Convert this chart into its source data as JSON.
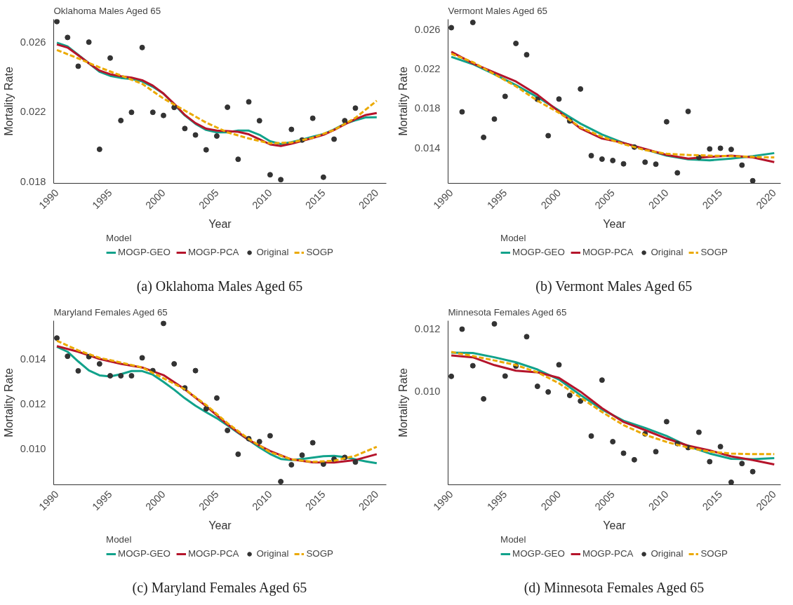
{
  "chart_data": [
    {
      "type": "line",
      "title": "Oklahoma Males Aged 65",
      "xlabel": "Year",
      "ylabel": "Mortality Rate",
      "legend_title": "Model",
      "legend": "bottom",
      "xlim": [
        1989.7,
        2020.9
      ],
      "ylim": [
        0.0179,
        0.0273
      ],
      "xticks": [
        1990,
        1995,
        2000,
        2005,
        2010,
        2015,
        2020
      ],
      "yticks": [
        0.018,
        0.022,
        0.026
      ],
      "annotations": [
        "(a) Oklahoma Males Aged 65"
      ],
      "series": [
        {
          "name": "MOGP-GEO",
          "color": "#11a28b",
          "x": [
            1990,
            1991,
            1992,
            1993,
            1994,
            1995,
            1996,
            1997,
            1998,
            1999,
            2000,
            2001,
            2002,
            2003,
            2004,
            2005,
            2006,
            2007,
            2008,
            2009,
            2010,
            2011,
            2012,
            2013,
            2014,
            2015,
            2016,
            2017,
            2018,
            2019,
            2020
          ],
          "values": [
            0.02596,
            0.02575,
            0.02526,
            0.02478,
            0.02429,
            0.02406,
            0.02394,
            0.02388,
            0.02374,
            0.02343,
            0.02304,
            0.02242,
            0.02179,
            0.02131,
            0.02096,
            0.02082,
            0.02082,
            0.02092,
            0.02092,
            0.02068,
            0.02031,
            0.02015,
            0.02026,
            0.0204,
            0.02057,
            0.02072,
            0.02099,
            0.02131,
            0.02151,
            0.02168,
            0.02169
          ]
        },
        {
          "name": "MOGP-PCA",
          "color": "#b5142b",
          "x": [
            1990,
            1991,
            1992,
            1993,
            1994,
            1995,
            1996,
            1997,
            1998,
            1999,
            2000,
            2001,
            2002,
            2003,
            2004,
            2005,
            2006,
            2007,
            2008,
            2009,
            2010,
            2011,
            2012,
            2013,
            2014,
            2015,
            2016,
            2017,
            2018,
            2019,
            2020
          ],
          "values": [
            0.02586,
            0.02568,
            0.02524,
            0.02478,
            0.02436,
            0.02415,
            0.02404,
            0.02396,
            0.02381,
            0.0235,
            0.02304,
            0.02246,
            0.02182,
            0.02135,
            0.02103,
            0.02092,
            0.02089,
            0.02085,
            0.02071,
            0.02043,
            0.02013,
            0.02004,
            0.02017,
            0.02033,
            0.0205,
            0.02068,
            0.02096,
            0.02128,
            0.02158,
            0.02182,
            0.02193
          ]
        },
        {
          "name": "Original",
          "color": "#333333",
          "type": "scatter",
          "marker": "circle",
          "x": [
            1990,
            1991,
            1992,
            1993,
            1994,
            1995,
            1996,
            1997,
            1998,
            1999,
            2000,
            2001,
            2002,
            2003,
            2004,
            2005,
            2006,
            2007,
            2008,
            2009,
            2010,
            2011,
            2012,
            2013,
            2014,
            2015,
            2016,
            2017,
            2018
          ],
          "values": [
            0.02717,
            0.02626,
            0.02461,
            0.02599,
            0.01985,
            0.02508,
            0.0215,
            0.02197,
            0.02568,
            0.02197,
            0.02179,
            0.02225,
            0.02104,
            0.02067,
            0.01982,
            0.02061,
            0.02226,
            0.01928,
            0.02257,
            0.02149,
            0.01839,
            0.01811,
            0.02099,
            0.02038,
            0.02163,
            0.01825,
            0.02043,
            0.02149,
            0.02221
          ]
        },
        {
          "name": "SOGP",
          "color": "#eba900",
          "line_style": "dashed",
          "x": [
            1990,
            1992,
            1994,
            1996,
            1998,
            2000,
            2002,
            2004,
            2006,
            2008,
            2010,
            2012,
            2014,
            2016,
            2018,
            2020
          ],
          "values": [
            0.02554,
            0.02506,
            0.02454,
            0.02408,
            0.0236,
            0.02276,
            0.02207,
            0.02138,
            0.02082,
            0.02047,
            0.02019,
            0.02024,
            0.02051,
            0.02096,
            0.02165,
            0.02263
          ]
        }
      ]
    },
    {
      "type": "line",
      "title": "Vermont Males Aged 65",
      "xlabel": "Year",
      "ylabel": "Mortality Rate",
      "legend_title": "Model",
      "legend": "bottom",
      "xlim": [
        1989.7,
        2020.6
      ],
      "ylim": [
        0.0104,
        0.027
      ],
      "xticks": [
        1990,
        1995,
        2000,
        2005,
        2010,
        2015,
        2020
      ],
      "yticks": [
        0.014,
        0.018,
        0.022,
        0.026
      ],
      "annotations": [
        "(b) Vermont Males Aged 65"
      ],
      "series": [
        {
          "name": "MOGP-GEO",
          "color": "#11a28b",
          "x": [
            1990,
            1992,
            1994,
            1996,
            1998,
            2000,
            2002,
            2004,
            2006,
            2008,
            2010,
            2012,
            2014,
            2016,
            2018,
            2020
          ],
          "values": [
            0.0232,
            0.02246,
            0.02144,
            0.02034,
            0.01912,
            0.01778,
            0.01644,
            0.01534,
            0.01449,
            0.01383,
            0.0132,
            0.01283,
            0.01273,
            0.0129,
            0.01315,
            0.01346
          ]
        },
        {
          "name": "MOGP-PCA",
          "color": "#b5142b",
          "x": [
            1990,
            1992,
            1994,
            1996,
            1998,
            2000,
            2002,
            2004,
            2006,
            2008,
            2010,
            2012,
            2014,
            2016,
            2018,
            2020
          ],
          "values": [
            0.02371,
            0.02254,
            0.02161,
            0.02071,
            0.01937,
            0.01766,
            0.01595,
            0.01493,
            0.01449,
            0.01388,
            0.01327,
            0.0129,
            0.01307,
            0.0132,
            0.01302,
            0.01254
          ]
        },
        {
          "name": "Original",
          "color": "#333333",
          "type": "scatter",
          "marker": "circle",
          "x": [
            1990,
            1991,
            1992,
            1993,
            1994,
            1995,
            1996,
            1997,
            1998,
            1999,
            2000,
            2001,
            2002,
            2003,
            2004,
            2005,
            2006,
            2007,
            2008,
            2009,
            2010,
            2011,
            2012,
            2013,
            2014,
            2015,
            2016,
            2017,
            2018
          ],
          "values": [
            0.02615,
            0.01763,
            0.02668,
            0.01505,
            0.0169,
            0.0192,
            0.02456,
            0.02341,
            0.0189,
            0.01522,
            0.01893,
            0.01671,
            0.01995,
            0.0132,
            0.01285,
            0.01271,
            0.01237,
            0.01407,
            0.01254,
            0.01234,
            0.01663,
            0.01146,
            0.01768,
            0.01302,
            0.01388,
            0.01395,
            0.01383,
            0.01224,
            0.01066
          ]
        },
        {
          "name": "SOGP",
          "color": "#eba900",
          "line_style": "dashed",
          "x": [
            1990,
            1992,
            1994,
            1996,
            1998,
            2000,
            2002,
            2004,
            2006,
            2008,
            2010,
            2012,
            2014,
            2016,
            2018,
            2020
          ],
          "values": [
            0.02351,
            0.02266,
            0.02144,
            0.02022,
            0.01876,
            0.01754,
            0.01607,
            0.0151,
            0.01437,
            0.01376,
            0.01339,
            0.01327,
            0.0132,
            0.01315,
            0.01307,
            0.01302
          ]
        }
      ]
    },
    {
      "type": "line",
      "title": "Maryland Females Aged  65",
      "xlabel": "Year",
      "ylabel": "Mortality Rate",
      "legend_title": "Model",
      "legend": "bottom",
      "xlim": [
        1989.7,
        2020.9
      ],
      "ylim": [
        0.0084,
        0.0157
      ],
      "xticks": [
        1990,
        1995,
        2000,
        2005,
        2010,
        2015,
        2020
      ],
      "yticks": [
        {
          "value": 0.01,
          "label": "0.010"
        },
        0.012,
        0.014
      ],
      "annotations": [
        "(c) Maryland Females Aged 65"
      ],
      "series": [
        {
          "name": "MOGP-GEO",
          "color": "#11a28b",
          "x": [
            1990,
            1991,
            1992,
            1993,
            1994,
            1995,
            1996,
            1997,
            1998,
            1999,
            2000,
            2001,
            2002,
            2003,
            2004,
            2005,
            2006,
            2007,
            2008,
            2009,
            2010,
            2011,
            2012,
            2013,
            2014,
            2015,
            2016,
            2017,
            2018,
            2019,
            2020
          ],
          "values": [
            0.01454,
            0.01432,
            0.01389,
            0.01349,
            0.01327,
            0.01322,
            0.01332,
            0.01346,
            0.01346,
            0.0133,
            0.01298,
            0.01263,
            0.01225,
            0.01192,
            0.01163,
            0.01136,
            0.01104,
            0.01071,
            0.01039,
            0.01006,
            0.00977,
            0.00955,
            0.0095,
            0.00955,
            0.00961,
            0.00967,
            0.00969,
            0.00963,
            0.00953,
            0.00944,
            0.00936
          ]
        },
        {
          "name": "MOGP-PCA",
          "color": "#b5142b",
          "x": [
            1990,
            1992,
            1994,
            1996,
            1998,
            2000,
            2002,
            2004,
            2006,
            2008,
            2010,
            2012,
            2014,
            2016,
            2018,
            2020
          ],
          "values": [
            0.01457,
            0.01432,
            0.014,
            0.01378,
            0.01362,
            0.01328,
            0.01265,
            0.0119,
            0.01109,
            0.01039,
            0.0099,
            0.00953,
            0.0094,
            0.00939,
            0.0095,
            0.00976
          ]
        },
        {
          "name": "Original",
          "color": "#333333",
          "type": "scatter",
          "marker": "circle",
          "x": [
            1990,
            1991,
            1992,
            1993,
            1994,
            1995,
            1996,
            1997,
            1998,
            1999,
            2000,
            2001,
            2002,
            2003,
            2004,
            2005,
            2006,
            2007,
            2008,
            2009,
            2010,
            2011,
            2012,
            2013,
            2014,
            2015,
            2016,
            2017,
            2018
          ],
          "values": [
            0.01493,
            0.01412,
            0.01347,
            0.0141,
            0.01378,
            0.01325,
            0.01325,
            0.01325,
            0.01405,
            0.01348,
            0.01558,
            0.01378,
            0.01271,
            0.01348,
            0.01178,
            0.01226,
            0.01082,
            0.00976,
            0.01045,
            0.01032,
            0.01058,
            0.00854,
            0.00929,
            0.00972,
            0.01027,
            0.00932,
            0.00954,
            0.00962,
            0.00941
          ]
        },
        {
          "name": "SOGP",
          "color": "#eba900",
          "line_style": "dashed",
          "x": [
            1990,
            1992,
            1994,
            1996,
            1998,
            2000,
            2002,
            2004,
            2006,
            2008,
            2010,
            2012,
            2014,
            2016,
            2018,
            2020
          ],
          "values": [
            0.01481,
            0.01438,
            0.01405,
            0.01384,
            0.01362,
            0.01314,
            0.01265,
            0.01195,
            0.01114,
            0.01044,
            0.00985,
            0.00953,
            0.00942,
            0.00947,
            0.00969,
            0.01009
          ]
        }
      ]
    },
    {
      "type": "line",
      "title": "Minnesota Females Aged  65",
      "xlabel": "Year",
      "ylabel": "Mortality Rate",
      "legend_title": "Model",
      "legend": "bottom",
      "xlim": [
        1989.7,
        2020.6
      ],
      "ylim": [
        0.007,
        0.01225
      ],
      "xticks": [
        1990,
        1995,
        2000,
        2005,
        2010,
        2015,
        2020
      ],
      "yticks": [
        {
          "value": 0.01,
          "label": "0.010"
        },
        0.012
      ],
      "annotations": [
        "(d) Minnesota Females Aged 65"
      ],
      "series": [
        {
          "name": "MOGP-GEO",
          "color": "#11a28b",
          "x": [
            1990,
            1992,
            1994,
            1996,
            1998,
            2000,
            2002,
            2004,
            2006,
            2008,
            2010,
            2012,
            2014,
            2016,
            2018,
            2020
          ],
          "values": [
            0.01123,
            0.01122,
            0.01108,
            0.01092,
            0.01069,
            0.01037,
            0.00987,
            0.00941,
            0.00905,
            0.00882,
            0.00856,
            0.00823,
            0.008,
            0.00783,
            0.00782,
            0.00785
          ]
        },
        {
          "name": "MOGP-PCA",
          "color": "#b5142b",
          "x": [
            1990,
            1992,
            1994,
            1996,
            1998,
            2000,
            2002,
            2004,
            2006,
            2008,
            2010,
            2012,
            2014,
            2016,
            2018,
            2020
          ],
          "values": [
            0.01114,
            0.01108,
            0.01083,
            0.01065,
            0.0106,
            0.01042,
            0.00998,
            0.00945,
            0.00901,
            0.00875,
            0.00848,
            0.00825,
            0.0081,
            0.00791,
            0.00779,
            0.00765
          ]
        },
        {
          "name": "Original",
          "color": "#333333",
          "type": "scatter",
          "marker": "circle",
          "x": [
            1990,
            1991,
            1992,
            1993,
            1994,
            1995,
            1996,
            1997,
            1998,
            1999,
            2000,
            2001,
            2002,
            2003,
            2004,
            2005,
            2006,
            2007,
            2008,
            2009,
            2010,
            2011,
            2012,
            2013,
            2014,
            2015,
            2016,
            2017,
            2018
          ],
          "values": [
            0.01047,
            0.01198,
            0.01081,
            0.00975,
            0.01215,
            0.01048,
            0.0108,
            0.01174,
            0.01015,
            0.00997,
            0.01084,
            0.00986,
            0.00968,
            0.00856,
            0.01035,
            0.00838,
            0.00801,
            0.0078,
            0.00863,
            0.00806,
            0.00902,
            0.00832,
            0.00819,
            0.00868,
            0.00774,
            0.00822,
            0.00708,
            0.00768,
            0.00742
          ]
        },
        {
          "name": "SOGP",
          "color": "#eba900",
          "line_style": "dashed",
          "x": [
            1990,
            1992,
            1994,
            1996,
            1998,
            2000,
            2002,
            2004,
            2006,
            2008,
            2010,
            2012,
            2014,
            2016,
            2018,
            2020
          ],
          "values": [
            0.01125,
            0.01112,
            0.01098,
            0.01083,
            0.0106,
            0.01025,
            0.00979,
            0.00933,
            0.00891,
            0.0086,
            0.00837,
            0.00819,
            0.00806,
            0.008,
            0.00798,
            0.00798
          ]
        }
      ]
    }
  ]
}
